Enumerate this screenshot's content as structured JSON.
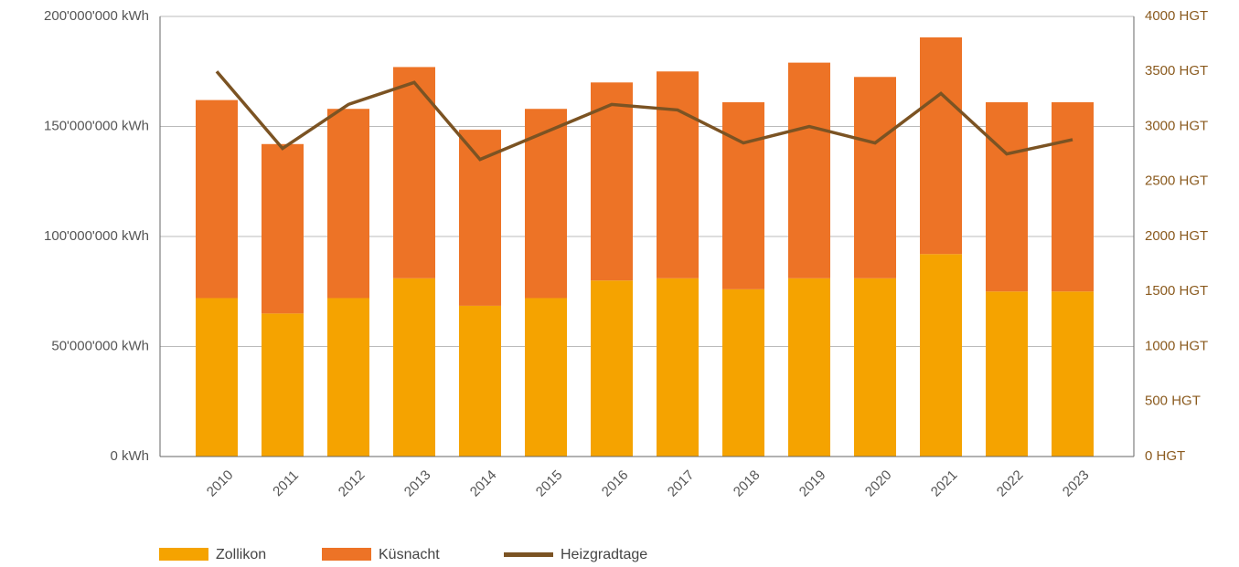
{
  "chart_data": {
    "type": "bar",
    "categories": [
      "2010",
      "2011",
      "2012",
      "2013",
      "2014",
      "2015",
      "2016",
      "2017",
      "2018",
      "2019",
      "2020",
      "2021",
      "2022",
      "2023"
    ],
    "series": [
      {
        "name": "Zollikon",
        "color": "#f5a300",
        "values": [
          72000000,
          65000000,
          72000000,
          81000000,
          68500000,
          72000000,
          80000000,
          81000000,
          76000000,
          81000000,
          81000000,
          92000000,
          75000000,
          75000000
        ]
      },
      {
        "name": "Küsnacht",
        "color": "#ed7326",
        "values": [
          90000000,
          77000000,
          86000000,
          96000000,
          80000000,
          86000000,
          90000000,
          94000000,
          85000000,
          98000000,
          91500000,
          98500000,
          86000000,
          86000000
        ]
      },
      {
        "name": "Heizgradtage",
        "color": "#7b5323",
        "type": "line",
        "axis": "y2",
        "values": [
          3500,
          2800,
          3200,
          3400,
          2700,
          2950,
          3200,
          3150,
          2850,
          3000,
          2850,
          3300,
          2750,
          2880
        ]
      }
    ],
    "stacked": true,
    "ylim": [
      0,
      200000000
    ],
    "yticks": [
      {
        "value": 0,
        "label": "0 kWh"
      },
      {
        "value": 50000000,
        "label": "50'000'000 kWh"
      },
      {
        "value": 100000000,
        "label": "100'000'000 kWh"
      },
      {
        "value": 150000000,
        "label": "150'000'000 kWh"
      },
      {
        "value": 200000000,
        "label": "200'000'000 kWh"
      }
    ],
    "y2lim": [
      0,
      4000
    ],
    "y2ticks": [
      {
        "value": 0,
        "label": "0 HGT"
      },
      {
        "value": 500,
        "label": "500 HGT"
      },
      {
        "value": 1000,
        "label": "1000 HGT"
      },
      {
        "value": 1500,
        "label": "1500 HGT"
      },
      {
        "value": 2000,
        "label": "2000 HGT"
      },
      {
        "value": 2500,
        "label": "2500 HGT"
      },
      {
        "value": 3000,
        "label": "3000 HGT"
      },
      {
        "value": 3500,
        "label": "3500 HGT"
      },
      {
        "value": 4000,
        "label": "4000 HGT"
      }
    ],
    "grid": true,
    "legend": "bottom"
  }
}
